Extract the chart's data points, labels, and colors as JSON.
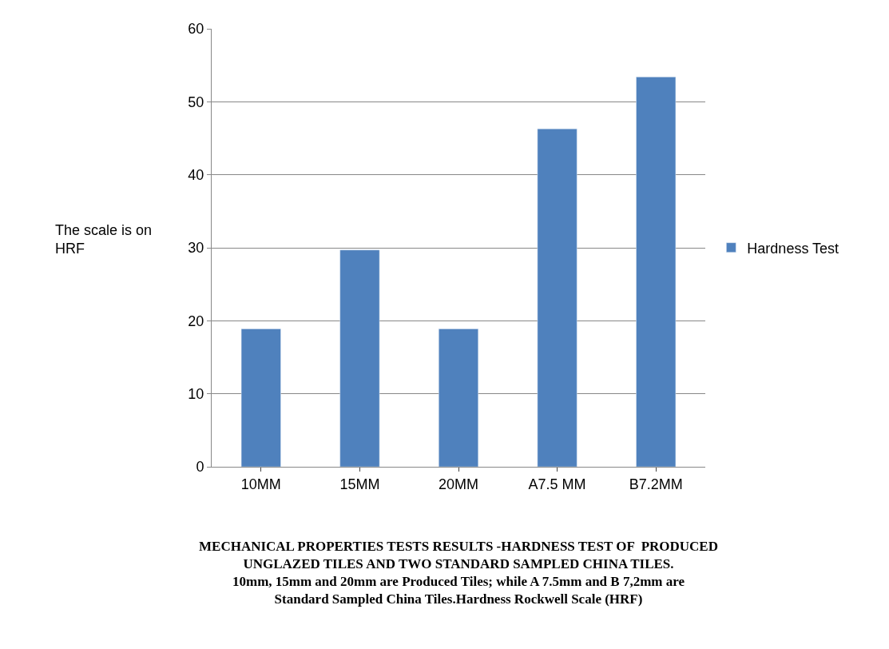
{
  "chart_data": {
    "type": "bar",
    "ylabel": "The scale is on\nHRF",
    "categories": [
      "10MM",
      "15MM",
      "20MM",
      "A7.5 MM",
      "B7.2MM"
    ],
    "series": [
      {
        "name": "Hardness Test",
        "color": "#4f81bd",
        "values": [
          18.9,
          29.7,
          18.9,
          46.3,
          53.4
        ]
      }
    ],
    "ylim": [
      0,
      60
    ],
    "yticks": [
      0,
      10,
      20,
      30,
      40,
      50,
      60
    ],
    "grid": "y",
    "legend": "right",
    "annotations": [
      "MECHANICAL PROPERTIES TESTS RESULTS -HARDNESS TEST OF  PRODUCED\nUNGLAZED TILES AND TWO STANDARD SAMPLED CHINA TILES.\n10mm, 15mm and 20mm are Produced Tiles; while A 7.5mm and B 7,2mm are\nStandard Sampled China Tiles.Hardness Rockwell Scale (HRF)"
    ]
  }
}
